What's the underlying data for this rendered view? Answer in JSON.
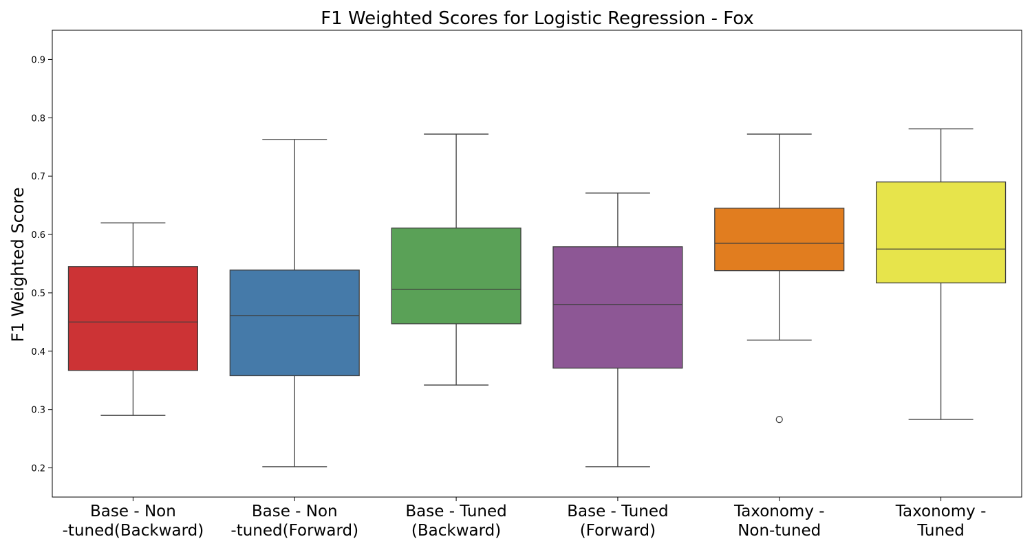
{
  "chart_data": {
    "type": "box",
    "title": "F1 Weighted Scores for Logistic Regression - Fox",
    "xlabel": "",
    "ylabel": "F1 Weighted Score",
    "ylim": [
      0.15,
      0.95
    ],
    "yticks": [
      "0.2",
      "0.3",
      "0.4",
      "0.5",
      "0.6",
      "0.7",
      "0.8",
      "0.9"
    ],
    "grid": false,
    "legend": "none",
    "boxes": [
      {
        "label_lines": [
          "Base - Non",
          "-tuned(Backward)"
        ],
        "color": "#cc3335",
        "whisker_low": 0.29,
        "q1": 0.367,
        "median": 0.45,
        "q3": 0.545,
        "whisker_high": 0.62,
        "outliers": []
      },
      {
        "label_lines": [
          "Base - Non",
          "-tuned(Forward)"
        ],
        "color": "#457aa9",
        "whisker_low": 0.202,
        "q1": 0.358,
        "median": 0.461,
        "q3": 0.539,
        "whisker_high": 0.763,
        "outliers": []
      },
      {
        "label_lines": [
          "Base - Tuned",
          "(Backward)"
        ],
        "color": "#5aa157",
        "whisker_low": 0.342,
        "q1": 0.447,
        "median": 0.506,
        "q3": 0.611,
        "whisker_high": 0.772,
        "outliers": []
      },
      {
        "label_lines": [
          "Base - Tuned",
          "(Forward)"
        ],
        "color": "#8d5795",
        "whisker_low": 0.202,
        "q1": 0.371,
        "median": 0.48,
        "q3": 0.579,
        "whisker_high": 0.671,
        "outliers": []
      },
      {
        "label_lines": [
          "Taxonomy -",
          "Non-tuned"
        ],
        "color": "#e17d1f",
        "whisker_low": 0.419,
        "q1": 0.538,
        "median": 0.585,
        "q3": 0.645,
        "whisker_high": 0.772,
        "outliers": [
          0.283
        ]
      },
      {
        "label_lines": [
          "Taxonomy -",
          "Tuned"
        ],
        "color": "#e7e44b",
        "whisker_low": 0.283,
        "q1": 0.517,
        "median": 0.575,
        "q3": 0.69,
        "whisker_high": 0.781,
        "outliers": []
      }
    ]
  }
}
